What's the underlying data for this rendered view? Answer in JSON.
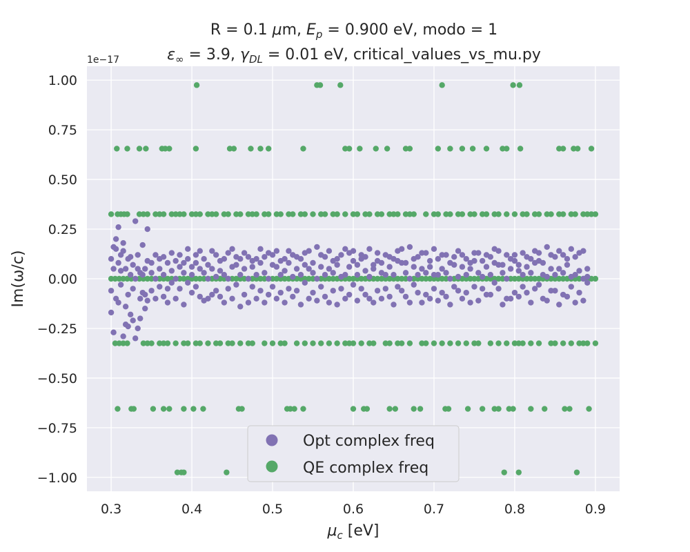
{
  "chart_data": {
    "type": "scatter",
    "title_line1_parts": [
      "R = 0.1 ",
      "μ",
      "m, ",
      "E",
      "p",
      " = 0.900 eV, modo = 1"
    ],
    "title_line2_parts": [
      "ε",
      "∞",
      " = 3.9, ",
      "γ",
      "DL",
      " = 0.01 eV, critical_values_vs_mu.py"
    ],
    "xlabel_parts": [
      "μ",
      "c",
      " [eV]"
    ],
    "ylabel": "Im(ω/c)",
    "y_offset_label": "1e−17",
    "x_ticks": [
      "0.3",
      "0.4",
      "0.5",
      "0.6",
      "0.7",
      "0.8",
      "0.9"
    ],
    "x_tick_values": [
      0.3,
      0.4,
      0.5,
      0.6,
      0.7,
      0.8,
      0.9
    ],
    "y_ticks": [
      "−1.00",
      "−0.75",
      "−0.50",
      "−0.25",
      "0.00",
      "0.25",
      "0.50",
      "0.75",
      "1.00"
    ],
    "y_tick_values": [
      -1.0,
      -0.75,
      -0.5,
      -0.25,
      0.0,
      0.25,
      0.5,
      0.75,
      1.0
    ],
    "xlim": [
      0.27,
      0.93
    ],
    "ylim": [
      -1.07,
      1.07
    ],
    "grid": true,
    "legend_position": "lower center",
    "series": [
      {
        "name": "Opt complex freq",
        "color": "#8172b3",
        "points": []
      },
      {
        "name": "QE complex freq",
        "color": "#55a868",
        "points": []
      }
    ],
    "opt_x": [
      0.3,
      0.303,
      0.306,
      0.309,
      0.312,
      0.315,
      0.318,
      0.321,
      0.324,
      0.327,
      0.33,
      0.333,
      0.336,
      0.339,
      0.342,
      0.345,
      0.35,
      0.355,
      0.36,
      0.365,
      0.37,
      0.375,
      0.38,
      0.385,
      0.39,
      0.395,
      0.4,
      0.405,
      0.41,
      0.415,
      0.42,
      0.425,
      0.43,
      0.435,
      0.44,
      0.445,
      0.45,
      0.455,
      0.46,
      0.465,
      0.47,
      0.475,
      0.48,
      0.485,
      0.49,
      0.495,
      0.5,
      0.505,
      0.51,
      0.515,
      0.52,
      0.525,
      0.53,
      0.535,
      0.54,
      0.545,
      0.55,
      0.555,
      0.56,
      0.565,
      0.57,
      0.575,
      0.58,
      0.585,
      0.59,
      0.595,
      0.6,
      0.605,
      0.61,
      0.615,
      0.62,
      0.625,
      0.63,
      0.635,
      0.64,
      0.645,
      0.65,
      0.655,
      0.66,
      0.665,
      0.67,
      0.675,
      0.68,
      0.685,
      0.69,
      0.695,
      0.7,
      0.705,
      0.71,
      0.715,
      0.72,
      0.725,
      0.73,
      0.735,
      0.74,
      0.745,
      0.75,
      0.755,
      0.76,
      0.765,
      0.77,
      0.775,
      0.78,
      0.785,
      0.79,
      0.795,
      0.8,
      0.805,
      0.81,
      0.815,
      0.82,
      0.825,
      0.83,
      0.835,
      0.84,
      0.845,
      0.85,
      0.855,
      0.86,
      0.865,
      0.87,
      0.875,
      0.88,
      0.885,
      0.89,
      0.895,
      0.9
    ],
    "opt_y": [
      [
        -0.17,
        0.1,
        -0.06
      ],
      [
        0.16,
        -0.27,
        0.05
      ],
      [
        0.2,
        0.15,
        -0.1
      ],
      [
        0.26,
        0.08,
        -0.12
      ],
      [
        0.12,
        -0.03,
        0.04
      ],
      [
        0.18,
        -0.29,
        0.14
      ],
      [
        0.05,
        -0.23,
        -0.14
      ],
      [
        -0.24,
        0.1,
        -0.08
      ],
      [
        0.02,
        -0.18,
        0.11
      ],
      [
        0.07,
        -0.21,
        -0.05
      ],
      [
        0.29,
        0.0,
        -0.3
      ],
      [
        -0.25,
        0.12,
        0.05
      ],
      [
        -0.2,
        0.03,
        -0.1
      ],
      [
        0.17,
        -0.07,
        0.02
      ],
      [
        -0.08,
        0.05,
        -0.15
      ],
      [
        0.25,
        -0.11,
        0.09
      ],
      [
        0.03,
        -0.06,
        0.08
      ],
      [
        -0.1,
        0.12,
        0.0
      ],
      [
        0.05,
        -0.04,
        0.1
      ],
      [
        0.11,
        -0.09,
        0.02
      ],
      [
        -0.05,
        0.08,
        -0.12
      ],
      [
        0.04,
        -0.02,
        0.13
      ],
      [
        0.09,
        -0.1,
        0.0
      ],
      [
        0.12,
        -0.05,
        0.06
      ],
      [
        0.08,
        -0.13,
        0.03
      ],
      [
        -0.02,
        0.1,
        0.15
      ],
      [
        0.06,
        -0.07,
        0.02
      ],
      [
        0.12,
        -0.04,
        0.08
      ],
      [
        -0.09,
        0.05,
        0.14
      ],
      [
        0.1,
        -0.11,
        0.03
      ],
      [
        0.0,
        0.07,
        -0.1
      ],
      [
        0.14,
        -0.08,
        0.05
      ],
      [
        -0.06,
        0.12,
        0.01
      ],
      [
        0.09,
        -0.09,
        0.04
      ],
      [
        0.02,
        -0.12,
        0.1
      ],
      [
        0.13,
        0.0,
        -0.05
      ],
      [
        -0.1,
        0.06,
        0.15
      ],
      [
        0.07,
        -0.03,
        0.11
      ],
      [
        -0.14,
        0.1,
        0.02
      ],
      [
        0.05,
        -0.08,
        0.13
      ],
      [
        0.11,
        0.0,
        -0.12
      ],
      [
        -0.04,
        0.09,
        0.06
      ],
      [
        0.1,
        -0.1,
        0.02
      ],
      [
        0.15,
        -0.06,
        0.08
      ],
      [
        0.03,
        -0.12,
        0.11
      ],
      [
        -0.08,
        0.13,
        0.0
      ],
      [
        0.12,
        -0.04,
        0.07
      ],
      [
        0.06,
        -0.1,
        0.14
      ],
      [
        0.09,
        0.02,
        -0.07
      ],
      [
        -0.12,
        0.1,
        0.04
      ],
      [
        0.14,
        -0.05,
        0.08
      ],
      [
        0.01,
        -0.09,
        0.12
      ],
      [
        -0.06,
        0.11,
        0.05
      ],
      [
        0.1,
        -0.13,
        0.02
      ],
      [
        0.13,
        -0.02,
        0.07
      ],
      [
        -0.1,
        0.05,
        0.14
      ],
      [
        0.08,
        -0.07,
        0.03
      ],
      [
        0.16,
        0.0,
        -0.11
      ],
      [
        -0.04,
        0.12,
        0.06
      ],
      [
        0.11,
        -0.09,
        0.02
      ],
      [
        0.05,
        -0.12,
        0.14
      ],
      [
        0.09,
        0.03,
        -0.06
      ],
      [
        -0.13,
        0.1,
        0.07
      ],
      [
        0.12,
        -0.05,
        0.01
      ],
      [
        0.02,
        -0.1,
        0.15
      ],
      [
        -0.08,
        0.13,
        0.06
      ],
      [
        0.14,
        -0.03,
        0.09
      ],
      [
        0.07,
        -0.11,
        0.02
      ],
      [
        -0.05,
        0.1,
        0.12
      ],
      [
        0.11,
        -0.08,
        0.04
      ],
      [
        0.15,
        0.01,
        -0.1
      ],
      [
        -0.12,
        0.07,
        0.05
      ],
      [
        0.09,
        -0.06,
        0.13
      ],
      [
        0.03,
        -0.1,
        0.08
      ],
      [
        0.12,
        0.02,
        -0.05
      ],
      [
        -0.09,
        0.11,
        0.06
      ],
      [
        0.1,
        -0.13,
        0.02
      ],
      [
        0.14,
        -0.04,
        0.09
      ],
      [
        -0.06,
        0.08,
        0.15
      ],
      [
        0.08,
        -0.09,
        0.03
      ],
      [
        0.16,
        0.0,
        -0.12
      ],
      [
        -0.03,
        0.1,
        0.06
      ],
      [
        0.11,
        -0.07,
        0.02
      ],
      [
        0.05,
        -0.12,
        0.13
      ],
      [
        0.13,
        0.03,
        -0.08
      ],
      [
        -0.1,
        0.09,
        0.06
      ],
      [
        0.15,
        -0.05,
        0.02
      ],
      [
        0.02,
        -0.11,
        0.1
      ],
      [
        -0.07,
        0.12,
        0.05
      ],
      [
        0.12,
        -0.09,
        0.03
      ],
      [
        0.08,
        0.0,
        -0.13
      ],
      [
        -0.04,
        0.11,
        0.07
      ],
      [
        0.14,
        -0.06,
        0.01
      ],
      [
        0.06,
        -0.1,
        0.12
      ],
      [
        0.1,
        0.02,
        -0.07
      ],
      [
        -0.12,
        0.08,
        0.05
      ],
      [
        0.13,
        -0.04,
        0.09
      ],
      [
        0.03,
        -0.11,
        0.13
      ],
      [
        0.09,
        0.01,
        -0.05
      ],
      [
        -0.08,
        0.12,
        0.06
      ],
      [
        0.11,
        -0.08,
        0.02
      ],
      [
        0.15,
        -0.02,
        0.08
      ],
      [
        -0.05,
        0.07,
        0.14
      ],
      [
        0.07,
        -0.13,
        0.03
      ],
      [
        0.12,
        0.0,
        -0.1
      ],
      [
        -0.1,
        0.1,
        0.05
      ],
      [
        0.09,
        -0.07,
        0.12
      ],
      [
        0.04,
        -0.09,
        0.07
      ],
      [
        0.13,
        0.02,
        -0.04
      ],
      [
        -0.07,
        0.11,
        0.06
      ],
      [
        0.1,
        -0.12,
        0.03
      ],
      [
        0.14,
        -0.05,
        0.08
      ],
      [
        -0.03,
        0.09,
        0.13
      ],
      [
        0.08,
        -0.1,
        0.02
      ],
      [
        0.16,
        0.01,
        -0.11
      ],
      [
        -0.06,
        0.12,
        0.05
      ],
      [
        0.11,
        -0.06,
        0.02
      ],
      [
        0.05,
        -0.13,
        0.14
      ],
      [
        0.12,
        0.03,
        -0.08
      ],
      [
        -0.09,
        0.1,
        0.07
      ],
      [
        0.15,
        -0.04,
        0.01
      ],
      [
        0.02,
        -0.12,
        0.11
      ],
      [
        -0.07,
        0.13,
        0.04
      ],
      [
        0.14,
        -0.11,
        0.0
      ],
      [
        0.05,
        -0.02,
        0.01
      ]
    ],
    "qe_x_levels": [
      {
        "y": 0.0,
        "x": [
          0.3,
          0.305,
          0.31,
          0.315,
          0.32,
          0.325,
          0.33,
          0.335,
          0.34,
          0.345,
          0.35,
          0.355,
          0.36,
          0.365,
          0.37,
          0.375,
          0.38,
          0.385,
          0.39,
          0.395,
          0.4,
          0.405,
          0.41,
          0.415,
          0.42,
          0.425,
          0.43,
          0.435,
          0.44,
          0.445,
          0.45,
          0.455,
          0.46,
          0.465,
          0.47,
          0.475,
          0.48,
          0.485,
          0.49,
          0.495,
          0.5,
          0.505,
          0.51,
          0.515,
          0.52,
          0.525,
          0.53,
          0.535,
          0.54,
          0.545,
          0.55,
          0.555,
          0.56,
          0.565,
          0.57,
          0.575,
          0.58,
          0.585,
          0.59,
          0.595,
          0.6,
          0.605,
          0.61,
          0.615,
          0.62,
          0.625,
          0.63,
          0.635,
          0.64,
          0.645,
          0.65,
          0.655,
          0.66,
          0.665,
          0.67,
          0.675,
          0.68,
          0.685,
          0.69,
          0.695,
          0.7,
          0.705,
          0.71,
          0.715,
          0.72,
          0.725,
          0.73,
          0.735,
          0.74,
          0.745,
          0.75,
          0.755,
          0.76,
          0.765,
          0.77,
          0.775,
          0.78,
          0.785,
          0.79,
          0.795,
          0.8,
          0.805,
          0.81,
          0.815,
          0.82,
          0.825,
          0.83,
          0.835,
          0.84,
          0.845,
          0.85,
          0.855,
          0.86,
          0.865,
          0.87,
          0.875,
          0.88,
          0.885,
          0.89,
          0.895,
          0.9
        ]
      },
      {
        "y": 0.325,
        "x": [
          0.3,
          0.308,
          0.312,
          0.316,
          0.32,
          0.335,
          0.34,
          0.345,
          0.355,
          0.36,
          0.365,
          0.375,
          0.38,
          0.385,
          0.39,
          0.4,
          0.405,
          0.41,
          0.42,
          0.425,
          0.43,
          0.44,
          0.445,
          0.455,
          0.46,
          0.47,
          0.475,
          0.48,
          0.49,
          0.495,
          0.505,
          0.51,
          0.52,
          0.525,
          0.535,
          0.54,
          0.55,
          0.56,
          0.565,
          0.575,
          0.58,
          0.59,
          0.6,
          0.605,
          0.615,
          0.62,
          0.63,
          0.635,
          0.645,
          0.65,
          0.655,
          0.665,
          0.67,
          0.675,
          0.69,
          0.7,
          0.705,
          0.715,
          0.72,
          0.73,
          0.735,
          0.745,
          0.75,
          0.76,
          0.765,
          0.775,
          0.78,
          0.79,
          0.8,
          0.81,
          0.815,
          0.825,
          0.83,
          0.84,
          0.845,
          0.855,
          0.86,
          0.87,
          0.875,
          0.885,
          0.89,
          0.895,
          0.9
        ]
      },
      {
        "y": -0.325,
        "x": [
          0.305,
          0.31,
          0.315,
          0.32,
          0.34,
          0.345,
          0.35,
          0.36,
          0.365,
          0.37,
          0.38,
          0.39,
          0.395,
          0.405,
          0.41,
          0.42,
          0.43,
          0.435,
          0.445,
          0.45,
          0.46,
          0.47,
          0.475,
          0.49,
          0.5,
          0.51,
          0.515,
          0.53,
          0.54,
          0.55,
          0.56,
          0.57,
          0.58,
          0.59,
          0.595,
          0.6,
          0.61,
          0.62,
          0.625,
          0.64,
          0.645,
          0.655,
          0.66,
          0.67,
          0.685,
          0.69,
          0.7,
          0.71,
          0.72,
          0.73,
          0.74,
          0.75,
          0.755,
          0.77,
          0.78,
          0.79,
          0.8,
          0.805,
          0.81,
          0.82,
          0.83,
          0.845,
          0.85,
          0.86,
          0.87,
          0.88,
          0.885,
          0.89,
          0.9
        ]
      },
      {
        "y": 0.655,
        "x": [
          0.307,
          0.32,
          0.335,
          0.343,
          0.363,
          0.367,
          0.372,
          0.405,
          0.447,
          0.452,
          0.473,
          0.485,
          0.495,
          0.538,
          0.59,
          0.595,
          0.608,
          0.628,
          0.642,
          0.665,
          0.67,
          0.705,
          0.72,
          0.735,
          0.748,
          0.765,
          0.785,
          0.79,
          0.807,
          0.855,
          0.86,
          0.873,
          0.878,
          0.895
        ]
      },
      {
        "y": -0.655,
        "x": [
          0.308,
          0.325,
          0.328,
          0.352,
          0.365,
          0.372,
          0.39,
          0.402,
          0.414,
          0.458,
          0.462,
          0.518,
          0.522,
          0.527,
          0.538,
          0.6,
          0.613,
          0.617,
          0.645,
          0.652,
          0.675,
          0.683,
          0.714,
          0.718,
          0.742,
          0.76,
          0.775,
          0.78,
          0.793,
          0.798,
          0.82,
          0.837,
          0.862,
          0.868,
          0.892
        ]
      },
      {
        "y": 0.975,
        "x": [
          0.406,
          0.555,
          0.559,
          0.584,
          0.71,
          0.798,
          0.806
        ]
      },
      {
        "y": -0.975,
        "x": [
          0.382,
          0.387,
          0.39,
          0.443,
          0.787,
          0.805,
          0.877
        ]
      }
    ]
  },
  "legend": {
    "opt_label": "Opt complex freq",
    "qe_label": "QE complex freq",
    "opt_color": "#8172b3",
    "qe_color": "#55a868"
  }
}
